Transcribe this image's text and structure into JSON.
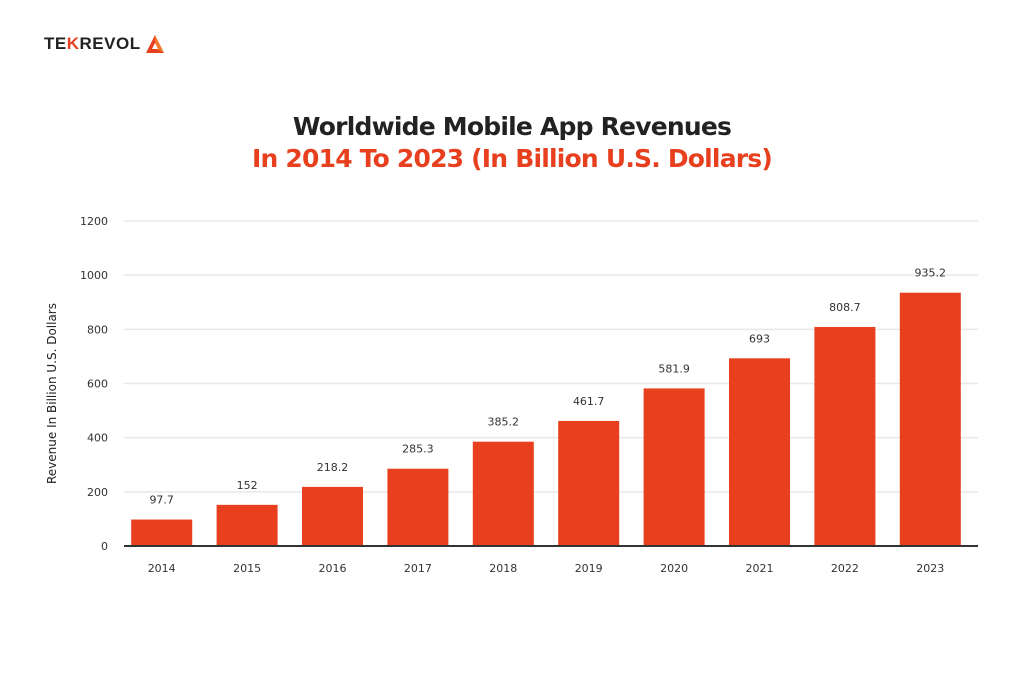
{
  "logo": {
    "text_left": "TE",
    "text_mark": "K",
    "text_right": "REVOL",
    "full": "TEKREVOL"
  },
  "colors": {
    "bar": "#e8401f",
    "title": "#222222",
    "subtitle": "#e8401f",
    "grid": "#e8e8e8",
    "axis": "#333333"
  },
  "chart_data": {
    "type": "bar",
    "title": "Worldwide Mobile App Revenues",
    "subtitle": "In 2014 To 2023 (In Billion U.S. Dollars)",
    "xlabel": "",
    "ylabel": "Revenue In Billion U.S. Dollars",
    "categories": [
      "2014",
      "2015",
      "2016",
      "2017",
      "2018",
      "2019",
      "2020",
      "2021",
      "2022",
      "2023"
    ],
    "values": [
      97.7,
      152,
      218.2,
      285.3,
      385.2,
      461.7,
      581.9,
      693,
      808.7,
      935.2
    ],
    "value_labels": [
      "97.7",
      "152",
      "218.2",
      "285.3",
      "385.2",
      "461.7",
      "581.9",
      "693",
      "808.7",
      "935.2"
    ],
    "ylim": [
      0,
      1200
    ],
    "yticks": [
      0,
      200,
      400,
      600,
      800,
      1000,
      1200
    ],
    "grid": true,
    "legend": "none"
  }
}
